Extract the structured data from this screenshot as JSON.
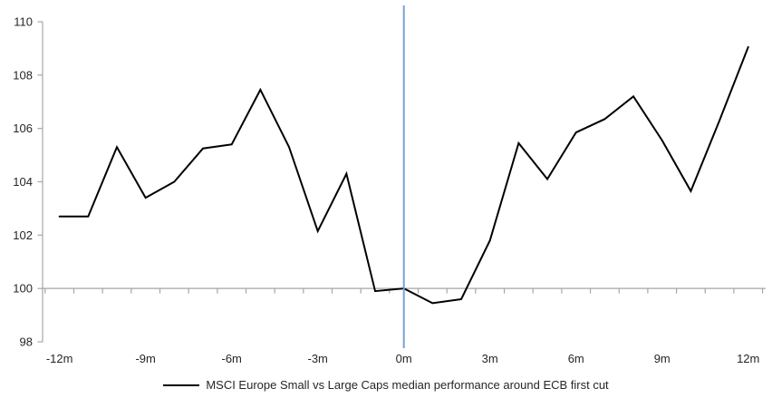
{
  "chart_data": {
    "type": "line",
    "title": "",
    "xlabel": "",
    "ylabel": "",
    "ylim": [
      98,
      110
    ],
    "yticks": [
      98,
      100,
      102,
      104,
      106,
      108,
      110
    ],
    "xticks": [
      {
        "value": -12,
        "label": "-12m"
      },
      {
        "value": -9,
        "label": "-9m"
      },
      {
        "value": -6,
        "label": "-6m"
      },
      {
        "value": -3,
        "label": "-3m"
      },
      {
        "value": 0,
        "label": "0m"
      },
      {
        "value": 3,
        "label": "3m"
      },
      {
        "value": 6,
        "label": "6m"
      },
      {
        "value": 9,
        "label": "9m"
      },
      {
        "value": 12,
        "label": "12m"
      }
    ],
    "x": [
      -12,
      -11,
      -10,
      -9,
      -8,
      -7,
      -6,
      -5,
      -4,
      -3,
      -2,
      -1,
      0,
      1,
      2,
      3,
      4,
      5,
      6,
      7,
      8,
      9,
      10,
      11,
      12
    ],
    "series": [
      {
        "name": "MSCI Europe Small vs Large Caps median performance around ECB first cut",
        "color": "#000000",
        "values": [
          102.7,
          102.7,
          105.3,
          103.4,
          104.0,
          105.25,
          105.4,
          107.45,
          105.3,
          102.15,
          104.3,
          99.9,
          100.0,
          99.45,
          99.6,
          101.8,
          105.45,
          104.1,
          105.85,
          106.35,
          107.2,
          105.55,
          103.65,
          106.3,
          109.05
        ]
      }
    ],
    "baseline_value": 100,
    "event_marker": {
      "x": 0,
      "color": "#74A3D4"
    },
    "grid": false,
    "legend_position": "bottom",
    "axis_color": "#A6A6A6",
    "text_color": "#262626",
    "background": "#FFFFFF"
  },
  "legend": {
    "swatch_color": "#000000"
  }
}
